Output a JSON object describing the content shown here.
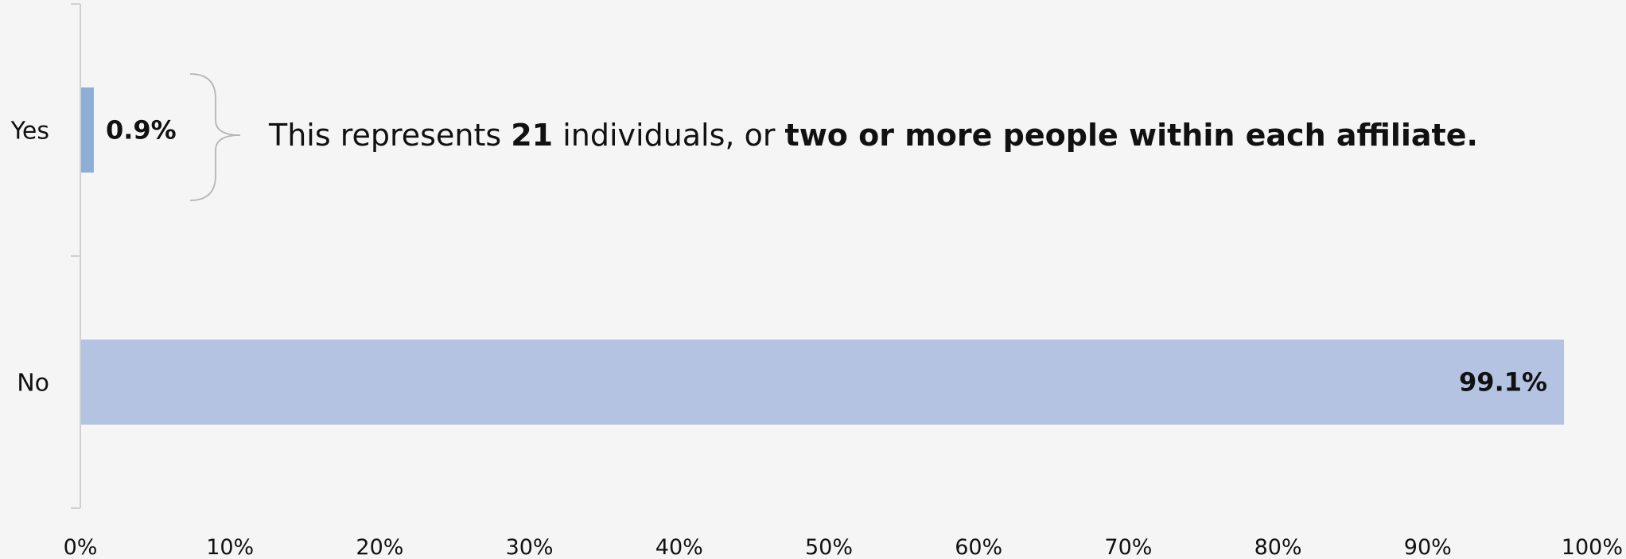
{
  "chart_data": {
    "type": "bar",
    "orientation": "horizontal",
    "categories": [
      "Yes",
      "No"
    ],
    "values": [
      0.9,
      99.1
    ],
    "data_labels": [
      "0.9%",
      "99.1%"
    ],
    "xlim": [
      0,
      100
    ],
    "xticks": [
      "0%",
      "10%",
      "20%",
      "30%",
      "40%",
      "50%",
      "60%",
      "70%",
      "80%",
      "90%",
      "100%"
    ],
    "bar_colors": [
      "#8eaed6",
      "#b4c3e2"
    ],
    "grid": false,
    "annotation": {
      "text_1": "This represents ",
      "bold_1": "21",
      "text_2": " individuals, or ",
      "bold_2": "two or more people within each affiliate."
    }
  }
}
